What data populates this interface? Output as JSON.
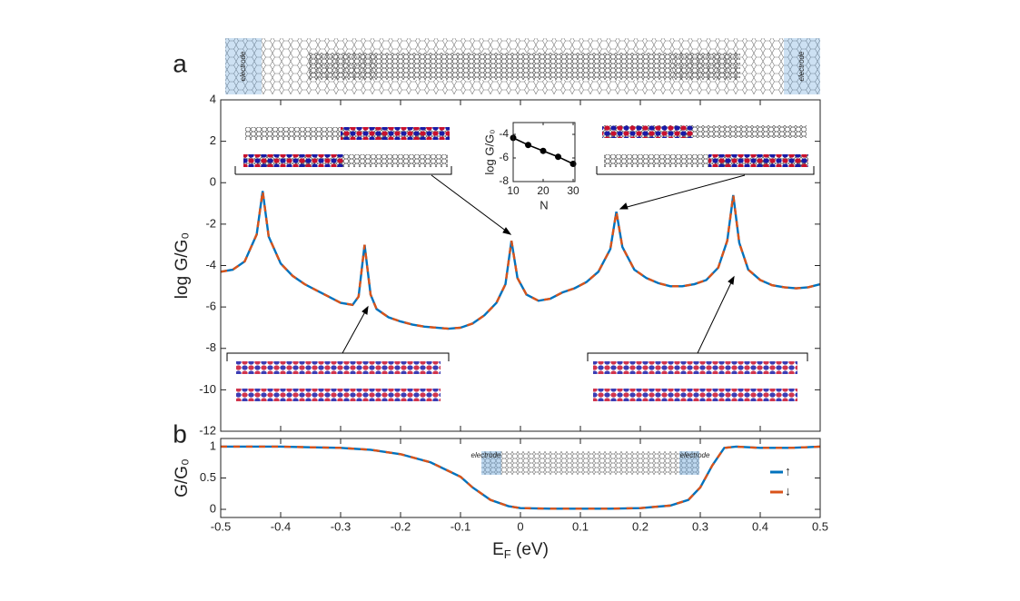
{
  "panel_labels": [
    "a",
    "b"
  ],
  "electrode_label": "electrode",
  "chart_data": [
    {
      "type": "line",
      "y_label": "log G/G₀",
      "xlim": [
        -0.5,
        0.5
      ],
      "ylim": [
        -12,
        4
      ],
      "xticks": [
        -0.5,
        -0.4,
        -0.3,
        -0.2,
        -0.1,
        0,
        0.1,
        0.2,
        0.3,
        0.4,
        0.5
      ],
      "yticks": [
        -12,
        -10,
        -8,
        -6,
        -4,
        -2,
        0,
        2,
        4
      ],
      "x": [
        -0.5,
        -0.48,
        -0.46,
        -0.44,
        -0.43,
        -0.42,
        -0.4,
        -0.38,
        -0.36,
        -0.34,
        -0.32,
        -0.3,
        -0.28,
        -0.27,
        -0.26,
        -0.25,
        -0.24,
        -0.22,
        -0.2,
        -0.18,
        -0.16,
        -0.14,
        -0.12,
        -0.1,
        -0.08,
        -0.06,
        -0.04,
        -0.025,
        -0.015,
        -0.005,
        0.01,
        0.03,
        0.05,
        0.07,
        0.09,
        0.11,
        0.13,
        0.15,
        0.16,
        0.17,
        0.19,
        0.21,
        0.23,
        0.25,
        0.27,
        0.29,
        0.31,
        0.33,
        0.345,
        0.355,
        0.365,
        0.38,
        0.4,
        0.42,
        0.44,
        0.46,
        0.48,
        0.5
      ],
      "series": [
        {
          "name": "↑",
          "color": "#0072bd",
          "dash": false,
          "values": [
            -4.3,
            -4.2,
            -3.8,
            -2.5,
            -0.4,
            -2.6,
            -3.9,
            -4.5,
            -4.9,
            -5.2,
            -5.5,
            -5.8,
            -5.9,
            -5.5,
            -3.0,
            -5.4,
            -6.1,
            -6.5,
            -6.7,
            -6.85,
            -6.95,
            -7.0,
            -7.05,
            -7.0,
            -6.8,
            -6.4,
            -5.8,
            -4.9,
            -2.8,
            -4.6,
            -5.4,
            -5.7,
            -5.6,
            -5.3,
            -5.1,
            -4.8,
            -4.3,
            -3.2,
            -1.4,
            -3.1,
            -4.2,
            -4.6,
            -4.85,
            -5.0,
            -5.0,
            -4.9,
            -4.7,
            -4.1,
            -2.8,
            -0.6,
            -2.9,
            -4.2,
            -4.7,
            -4.95,
            -5.05,
            -5.1,
            -5.05,
            -4.9
          ]
        },
        {
          "name": "↓",
          "color": "#d95319",
          "dash": true,
          "values": [
            -4.3,
            -4.2,
            -3.8,
            -2.5,
            -0.4,
            -2.6,
            -3.9,
            -4.5,
            -4.9,
            -5.2,
            -5.5,
            -5.8,
            -5.9,
            -5.5,
            -3.0,
            -5.4,
            -6.1,
            -6.5,
            -6.7,
            -6.85,
            -6.95,
            -7.0,
            -7.05,
            -7.0,
            -6.8,
            -6.4,
            -5.8,
            -4.9,
            -2.8,
            -4.6,
            -5.4,
            -5.7,
            -5.6,
            -5.3,
            -5.1,
            -4.8,
            -4.3,
            -3.2,
            -1.4,
            -3.1,
            -4.2,
            -4.6,
            -4.85,
            -5.0,
            -5.0,
            -4.9,
            -4.7,
            -4.1,
            -2.8,
            -0.6,
            -2.9,
            -4.2,
            -4.7,
            -4.95,
            -5.05,
            -5.1,
            -5.05,
            -4.9
          ]
        }
      ]
    },
    {
      "type": "line",
      "x_label": "N",
      "y_label": "log G/G₀",
      "xlim": [
        10,
        30.6
      ],
      "ylim": [
        -8,
        -3
      ],
      "xticks": [
        10,
        20,
        30
      ],
      "yticks": [
        -8,
        -6,
        -4
      ],
      "x": [
        10,
        15,
        20,
        25,
        30
      ],
      "series": [
        {
          "color": "#000000",
          "markers": true,
          "values": [
            -4.3,
            -4.9,
            -5.4,
            -5.9,
            -6.5
          ]
        }
      ]
    },
    {
      "type": "line",
      "x_label": {
        "main": "E",
        "sub": "F",
        "unit": " (eV)"
      },
      "y_label": "G/G₀",
      "xlim": [
        -0.5,
        0.5
      ],
      "ylim": [
        -0.13,
        1.13
      ],
      "xticks": [
        -0.5,
        -0.4,
        -0.3,
        -0.2,
        -0.1,
        0,
        0.1,
        0.2,
        0.3,
        0.4,
        0.5
      ],
      "yticks": [
        0,
        0.5,
        1
      ],
      "legend": "right",
      "x": [
        -0.5,
        -0.45,
        -0.4,
        -0.35,
        -0.3,
        -0.25,
        -0.2,
        -0.15,
        -0.1,
        -0.08,
        -0.05,
        -0.02,
        0,
        0.05,
        0.1,
        0.15,
        0.2,
        0.25,
        0.28,
        0.3,
        0.32,
        0.34,
        0.36,
        0.4,
        0.45,
        0.5
      ],
      "series": [
        {
          "name": "↑",
          "color": "#0072bd",
          "dash": false,
          "values": [
            1,
            1,
            1,
            0.99,
            0.98,
            0.95,
            0.88,
            0.75,
            0.52,
            0.35,
            0.15,
            0.05,
            0.02,
            0.01,
            0.01,
            0.01,
            0.02,
            0.06,
            0.15,
            0.35,
            0.7,
            0.98,
            1.0,
            0.98,
            0.98,
            1.0
          ]
        },
        {
          "name": "↓",
          "color": "#d95319",
          "dash": true,
          "values": [
            1,
            1,
            1,
            0.99,
            0.98,
            0.95,
            0.88,
            0.75,
            0.52,
            0.35,
            0.15,
            0.05,
            0.02,
            0.01,
            0.01,
            0.01,
            0.02,
            0.06,
            0.15,
            0.35,
            0.7,
            0.98,
            1.0,
            0.98,
            0.98,
            1.0
          ]
        }
      ]
    }
  ]
}
